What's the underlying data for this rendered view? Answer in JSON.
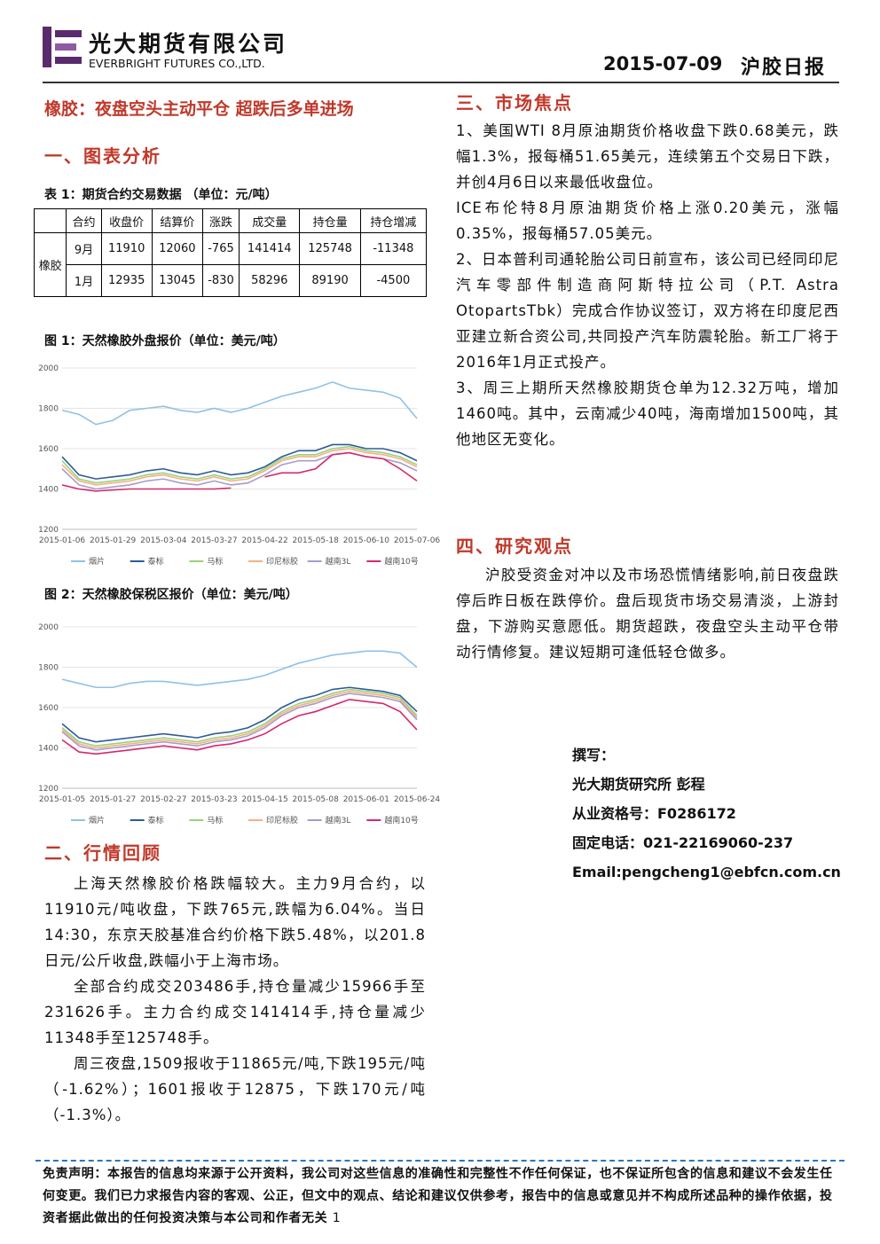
{
  "header": {
    "company_cn": "光大期货有限公司",
    "company_en": "EVERBRIGHT FUTURES CO.,LTD.",
    "date": "2015-07-09",
    "report": "沪胶日报"
  },
  "headline": "橡胶：夜盘空头主动平仓 超跌后多单进场",
  "sections": {
    "charts": "一、图表分析",
    "review": "二、行情回顾",
    "focus": "三、市场焦点",
    "view": "四、研究观点"
  },
  "table": {
    "caption": "表 1：期货合约交易数据 （单位：元/吨）",
    "header": [
      "合约",
      "收盘价",
      "结算价",
      "涨跌",
      "成交量",
      "持仓量",
      "持仓增减"
    ],
    "group": "橡胶",
    "rows": [
      [
        "9月",
        11910,
        12060,
        -765,
        141414,
        125748,
        -11348
      ],
      [
        "1月",
        12935,
        13045,
        -830,
        58296,
        89190,
        -4500
      ]
    ]
  },
  "figures": [
    "图 1：天然橡胶外盘报价（单位：美元/吨）",
    "图 2：天然橡胶保税区报价（单位：美元/吨）"
  ],
  "chart_data": [
    {
      "type": "line",
      "categories": [
        "2015-01-06",
        null,
        null,
        "2015-01-29",
        null,
        null,
        "2015-03-04",
        null,
        null,
        "2015-03-27",
        null,
        null,
        "2015-04-22",
        null,
        null,
        "2015-05-18",
        null,
        null,
        "2015-06-10",
        null,
        null,
        "2015-07-06"
      ],
      "ylim": [
        1200,
        2000
      ],
      "yticks": [
        1200,
        1400,
        1600,
        1800,
        2000
      ],
      "grid": true,
      "series": [
        {
          "name": "烟片",
          "color": "#8ec1e8",
          "values": [
            1790,
            1770,
            1720,
            1740,
            1790,
            1800,
            1810,
            1790,
            1780,
            1800,
            1780,
            1800,
            1830,
            1860,
            1880,
            1900,
            1930,
            1900,
            1890,
            1880,
            1850,
            1750
          ]
        },
        {
          "name": "泰标",
          "color": "#2e5b9a",
          "values": [
            1560,
            1470,
            1450,
            1460,
            1470,
            1490,
            1500,
            1480,
            1470,
            1490,
            1470,
            1480,
            1510,
            1560,
            1590,
            1590,
            1620,
            1620,
            1600,
            1600,
            1580,
            1540
          ]
        },
        {
          "name": "马标",
          "color": "#9bd17a",
          "values": [
            1540,
            1450,
            1430,
            1440,
            1450,
            1470,
            1480,
            1460,
            1450,
            1470,
            1450,
            1460,
            1500,
            1550,
            1570,
            1570,
            1600,
            1610,
            1590,
            1580,
            1560,
            1520
          ]
        },
        {
          "name": "印尼标胶",
          "color": "#f4b183",
          "values": [
            1520,
            1440,
            1420,
            1430,
            1440,
            1460,
            1470,
            1450,
            1440,
            1460,
            1440,
            1450,
            1490,
            1540,
            1560,
            1560,
            1590,
            1600,
            1580,
            1570,
            1550,
            1510
          ]
        },
        {
          "name": "越南3L",
          "color": "#a89cc8",
          "values": [
            1500,
            1420,
            1400,
            1410,
            1420,
            1440,
            1450,
            1430,
            1420,
            1440,
            1420,
            1430,
            1470,
            1520,
            1540,
            1540,
            1570,
            1580,
            1560,
            1550,
            1530,
            1490
          ]
        },
        {
          "name": "越南10号",
          "color": "#d6286f",
          "values": [
            1420,
            1400,
            1390,
            1395,
            1400,
            1400,
            1400,
            1400,
            1400,
            1400,
            1405,
            null,
            1460,
            1480,
            1480,
            1500,
            1570,
            1580,
            1560,
            1550,
            1500,
            1440
          ]
        }
      ]
    },
    {
      "type": "line",
      "categories": [
        "2015-01-05",
        null,
        null,
        "2015-01-27",
        null,
        null,
        "2015-02-27",
        null,
        null,
        "2015-03-23",
        null,
        null,
        "2015-04-15",
        null,
        null,
        "2015-05-08",
        null,
        null,
        "2015-06-01",
        null,
        null,
        "2015-06-24"
      ],
      "ylim": [
        1200,
        2000
      ],
      "yticks": [
        1200,
        1400,
        1600,
        1800,
        2000
      ],
      "grid": true,
      "series": [
        {
          "name": "烟片",
          "color": "#8ec1e8",
          "values": [
            1740,
            1720,
            1700,
            1700,
            1720,
            1730,
            1730,
            1720,
            1710,
            1720,
            1730,
            1740,
            1760,
            1790,
            1820,
            1840,
            1860,
            1870,
            1880,
            1880,
            1870,
            1800
          ]
        },
        {
          "name": "泰标",
          "color": "#2e5b9a",
          "values": [
            1520,
            1450,
            1430,
            1440,
            1450,
            1460,
            1470,
            1460,
            1450,
            1470,
            1480,
            1500,
            1540,
            1600,
            1640,
            1660,
            1690,
            1700,
            1690,
            1680,
            1660,
            1580
          ]
        },
        {
          "name": "马标",
          "color": "#9bd17a",
          "values": [
            1500,
            1430,
            1410,
            1420,
            1430,
            1440,
            1450,
            1440,
            1430,
            1450,
            1460,
            1480,
            1520,
            1580,
            1620,
            1640,
            1670,
            1690,
            1680,
            1670,
            1650,
            1560
          ]
        },
        {
          "name": "印尼标胶",
          "color": "#f4b183",
          "values": [
            1490,
            1420,
            1400,
            1410,
            1420,
            1430,
            1440,
            1430,
            1420,
            1440,
            1450,
            1470,
            1510,
            1570,
            1610,
            1630,
            1660,
            1680,
            1670,
            1660,
            1640,
            1550
          ]
        },
        {
          "name": "越南3L",
          "color": "#a89cc8",
          "values": [
            1480,
            1410,
            1390,
            1400,
            1410,
            1420,
            1430,
            1420,
            1410,
            1430,
            1440,
            1460,
            1500,
            1560,
            1600,
            1620,
            1650,
            1670,
            1660,
            1650,
            1630,
            1540
          ]
        },
        {
          "name": "越南10号",
          "color": "#d6286f",
          "values": [
            1440,
            1380,
            1370,
            1380,
            1390,
            1400,
            1410,
            1400,
            1390,
            1410,
            1420,
            1440,
            1470,
            1520,
            1560,
            1580,
            1610,
            1640,
            1630,
            1620,
            1580,
            1490
          ]
        }
      ]
    }
  ],
  "review": [
    "上海天然橡胶价格跌幅较大。主力9月合约，以11910元/吨收盘，下跌765元,跌幅为6.04%。当日14:30，东京天胶基准合约价格下跌5.48%，以201.8日元/公斤收盘,跌幅小于上海市场。",
    "全部合约成交203486手,持仓量减少15966手至231626手。主力合约成交141414手,持仓量减少11348手至125748手。",
    "周三夜盘,1509报收于11865元/吨,下跌195元/吨（-1.62%）；1601报收于12875，下跌170元/吨（-1.3%）。"
  ],
  "focus": [
    "1、美国WTI 8月原油期货价格收盘下跌0.68美元，跌幅1.3%，报每桶51.65美元，连续第五个交易日下跌，并创4月6日以来最低收盘位。",
    "ICE布伦特8月原油期货价格上涨0.20美元，涨幅0.35%，报每桶57.05美元。",
    "2、日本普利司通轮胎公司日前宣布，该公司已经同印尼汽车零部件制造商阿斯特拉公司（P.T. Astra OtopartsTbk）完成合作协议签订，双方将在印度尼西亚建立新合资公司,共同投产汽车防震轮胎。新工厂将于2016年1月正式投产。",
    "3、周三上期所天然橡胶期货仓单为12.32万吨，增加1460吨。其中，云南减少40吨，海南增加1500吨，其他地区无变化。"
  ],
  "view": "沪胶受资金对冲以及市场恐慌情绪影响,前日夜盘跌停后昨日板在跌停价。盘后现货市场交易清淡，上游封盘，下游购买意愿低。期货超跌，夜盘空头主动平仓带动行情修复。建议短期可逢低轻仓做多。",
  "author": [
    "撰写：",
    "光大期货研究所 彭程",
    "从业资格号：F0286172",
    "固定电话：021-22169060-237",
    "Email:pengcheng1@ebfcn.com.cn"
  ],
  "disclaimer": "免责声明：本报告的信息均来源于公开资料，我公司对这些信息的准确性和完整性不作任何保证，也不保证所包含的信息和建议不会发生任何变更。我们已力求报告内容的客观、公正，但文中的观点、结论和建议仅供参考，报告中的信息或意见并不构成所述品种的操作依据，投资者据此做出的任何投资决策与本公司和作者无关",
  "page": 1
}
